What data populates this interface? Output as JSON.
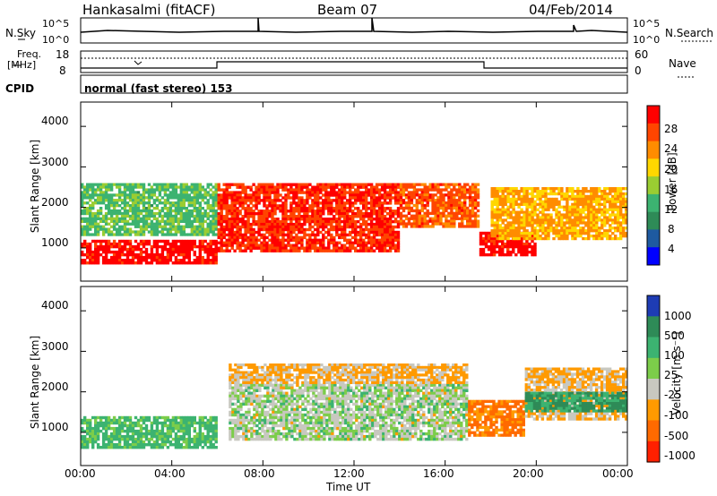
{
  "header": {
    "site": "Hankasalmi (fitACF)",
    "beam": "Beam 07",
    "date": "04/Feb/2014"
  },
  "top_panels": {
    "nsky_label": "N.Sky",
    "nsky_ticks": [
      "10^5",
      "10^0"
    ],
    "nsearch_label": "N.Search",
    "nsearch_ticks": [
      "10^5",
      "10^0"
    ],
    "freq_label": "Freq.",
    "freq_unit": "[MHz]",
    "freq_ticks": [
      "18",
      "8"
    ],
    "nave_label": "Nave",
    "nave_ticks": [
      "60",
      "0"
    ],
    "cpid_label": "CPID",
    "cpid_text": "normal (fast stereo) 153"
  },
  "power_colorbar": {
    "title": "Power [dB]",
    "ticks": [
      "28",
      "24",
      "20",
      "16",
      "12",
      "8",
      "4"
    ],
    "colors": [
      "#ff0000",
      "#ff4500",
      "#ff8c00",
      "#ffd700",
      "#9acd32",
      "#3cb371",
      "#2e8b57",
      "#1e5aa0",
      "#0000ff"
    ]
  },
  "velocity_colorbar": {
    "title": "Velocity [m s⁻¹]",
    "ticks": [
      "1000",
      "500",
      "100",
      "25",
      "-25",
      "-100",
      "-500",
      "-1000"
    ],
    "colors": [
      "#1e3cb4",
      "#2e8b57",
      "#3cb371",
      "#7ccd4a",
      "#c8c8c0",
      "#ff9a00",
      "#ff6a00",
      "#ff2000"
    ]
  },
  "axes": {
    "ylabel": "Slant Range [km]",
    "yticks": [
      "4000",
      "3000",
      "2000",
      "1000"
    ],
    "xlabel": "Time UT",
    "xticks": [
      "00:00",
      "04:00",
      "08:00",
      "12:00",
      "16:00",
      "20:00",
      "00:00"
    ]
  },
  "chart_data": [
    {
      "type": "heatmap",
      "title": "Power [dB]",
      "xlabel": "Time UT",
      "ylabel": "Slant Range [km]",
      "xlim": [
        0,
        24
      ],
      "ylim": [
        180,
        4600
      ],
      "colorbar_range": [
        0,
        30
      ],
      "regions": [
        {
          "t": [
            0.0,
            6.0
          ],
          "range": [
            600,
            1200
          ],
          "value": 28
        },
        {
          "t": [
            0.0,
            6.0
          ],
          "range": [
            1300,
            2600
          ],
          "value": 12
        },
        {
          "t": [
            6.0,
            14.0
          ],
          "range": [
            900,
            2600
          ],
          "value": 26
        },
        {
          "t": [
            14.0,
            17.5
          ],
          "range": [
            1500,
            2600
          ],
          "value": 24
        },
        {
          "t": [
            17.5,
            20.0
          ],
          "range": [
            800,
            1400
          ],
          "value": 28
        },
        {
          "t": [
            18.0,
            24.0
          ],
          "range": [
            1200,
            2500
          ],
          "value": 20
        }
      ]
    },
    {
      "type": "heatmap",
      "title": "Velocity",
      "xlabel": "Time UT",
      "ylabel": "Slant Range [km]",
      "xlim": [
        0,
        24
      ],
      "ylim": [
        180,
        4600
      ],
      "colorbar_range": [
        -1000,
        1000
      ],
      "regions": [
        {
          "t": [
            0.0,
            6.0
          ],
          "range": [
            600,
            1400
          ],
          "value": 100
        },
        {
          "t": [
            6.5,
            17.0
          ],
          "range": [
            800,
            2200
          ],
          "value": 0
        },
        {
          "t": [
            6.5,
            17.0
          ],
          "range": [
            2200,
            2700
          ],
          "value": -100
        },
        {
          "t": [
            17.0,
            19.5
          ],
          "range": [
            900,
            1800
          ],
          "value": -300
        },
        {
          "t": [
            19.5,
            24.0
          ],
          "range": [
            1300,
            2600
          ],
          "value": -100
        },
        {
          "t": [
            19.5,
            24.0
          ],
          "range": [
            1500,
            2000
          ],
          "value": 300
        }
      ]
    }
  ]
}
